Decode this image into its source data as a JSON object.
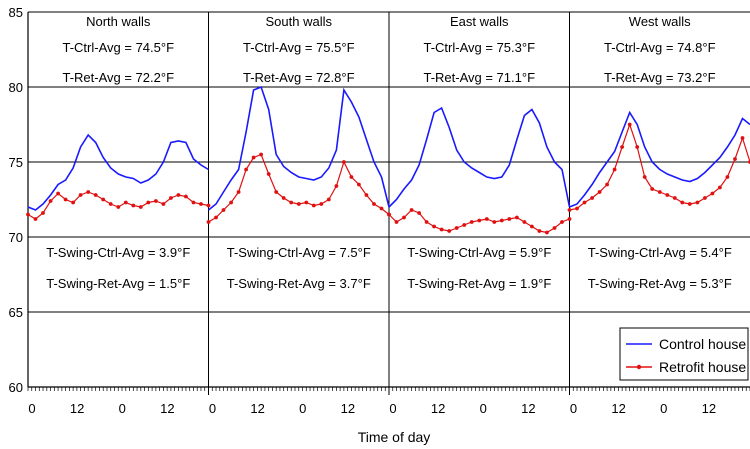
{
  "chart_data": {
    "type": "line",
    "xlabel": "Time of day",
    "ylabel": "",
    "ylim": [
      60,
      85
    ],
    "y_ticks": [
      "60",
      "65",
      "70",
      "75",
      "80",
      "85"
    ],
    "x_ticks_per_panel": [
      "0",
      "12",
      "0",
      "12"
    ],
    "x_hours_per_panel": [
      0,
      12,
      24,
      36
    ],
    "hours_per_panel": 48,
    "grid": true,
    "legend_position": "bottom-right",
    "legend": [
      "Control house",
      "Retrofit house"
    ],
    "colors": {
      "control": "#1a1aff",
      "retrofit": "#e01010"
    },
    "panels": [
      {
        "title": "North walls",
        "ctrl_avg": "T-Ctrl-Avg = 74.5°F",
        "ret_avg": "T-Ret-Avg = 72.2°F",
        "swing_ctrl": "T-Swing-Ctrl-Avg = 3.9°F",
        "swing_ret": "T-Swing-Ret-Avg = 1.5°F",
        "series": [
          {
            "name": "Control house",
            "x": [
              0,
              2,
              4,
              6,
              8,
              10,
              12,
              14,
              16,
              18,
              20,
              22,
              24,
              26,
              28,
              30,
              32,
              34,
              36,
              38,
              40,
              42,
              44,
              46,
              48
            ],
            "y": [
              72.0,
              71.8,
              72.2,
              72.8,
              73.5,
              73.8,
              74.6,
              76.0,
              76.8,
              76.3,
              75.3,
              74.6,
              74.2,
              74.0,
              73.9,
              73.6,
              73.8,
              74.2,
              75.0,
              76.3,
              76.4,
              76.3,
              75.2,
              74.8,
              74.5
            ]
          },
          {
            "name": "Retrofit house",
            "x": [
              0,
              2,
              4,
              6,
              8,
              10,
              12,
              14,
              16,
              18,
              20,
              22,
              24,
              26,
              28,
              30,
              32,
              34,
              36,
              38,
              40,
              42,
              44,
              46,
              48
            ],
            "y": [
              71.5,
              71.2,
              71.6,
              72.4,
              72.9,
              72.5,
              72.3,
              72.8,
              73.0,
              72.8,
              72.5,
              72.2,
              72.0,
              72.3,
              72.1,
              72.0,
              72.3,
              72.4,
              72.2,
              72.6,
              72.8,
              72.7,
              72.3,
              72.2,
              72.1
            ]
          }
        ]
      },
      {
        "title": "South walls",
        "ctrl_avg": "T-Ctrl-Avg = 75.5°F",
        "ret_avg": "T-Ret-Avg = 72.8°F",
        "swing_ctrl": "T-Swing-Ctrl-Avg = 7.5°F",
        "swing_ret": "T-Swing-Ret-Avg = 3.7°F",
        "series": [
          {
            "name": "Control house",
            "x": [
              0,
              2,
              4,
              6,
              8,
              10,
              12,
              14,
              16,
              18,
              20,
              22,
              24,
              26,
              28,
              30,
              32,
              34,
              36,
              38,
              40,
              42,
              44,
              46,
              48
            ],
            "y": [
              71.8,
              72.2,
              73.0,
              73.8,
              74.5,
              77.0,
              79.8,
              80.0,
              78.5,
              75.5,
              74.7,
              74.3,
              74.0,
              73.9,
              73.8,
              74.0,
              74.6,
              75.8,
              79.8,
              79.0,
              78.0,
              76.5,
              75.0,
              74.0,
              72.0
            ]
          },
          {
            "name": "Retrofit house",
            "x": [
              0,
              2,
              4,
              6,
              8,
              10,
              12,
              14,
              16,
              18,
              20,
              22,
              24,
              26,
              28,
              30,
              32,
              34,
              36,
              38,
              40,
              42,
              44,
              46,
              48
            ],
            "y": [
              71.0,
              71.3,
              71.8,
              72.3,
              73.0,
              74.5,
              75.3,
              75.5,
              74.2,
              73.0,
              72.6,
              72.3,
              72.2,
              72.3,
              72.1,
              72.2,
              72.5,
              73.4,
              75.0,
              74.0,
              73.5,
              72.8,
              72.2,
              71.9,
              71.5
            ]
          }
        ]
      },
      {
        "title": "East walls",
        "ctrl_avg": "T-Ctrl-Avg = 75.3°F",
        "ret_avg": "T-Ret-Avg = 71.1°F",
        "swing_ctrl": "T-Swing-Ctrl-Avg = 5.9°F",
        "swing_ret": "T-Swing-Ret-Avg = 1.9°F",
        "series": [
          {
            "name": "Control house",
            "x": [
              0,
              2,
              4,
              6,
              8,
              10,
              12,
              14,
              16,
              18,
              20,
              22,
              24,
              26,
              28,
              30,
              32,
              34,
              36,
              38,
              40,
              42,
              44,
              46,
              48
            ],
            "y": [
              72.0,
              72.5,
              73.2,
              73.8,
              74.8,
              76.5,
              78.3,
              78.6,
              77.3,
              75.8,
              75.0,
              74.6,
              74.3,
              74.0,
              73.9,
              74.0,
              74.8,
              76.5,
              78.1,
              78.5,
              77.6,
              76.0,
              75.0,
              74.5,
              72.0
            ]
          },
          {
            "name": "Retrofit house",
            "x": [
              0,
              2,
              4,
              6,
              8,
              10,
              12,
              14,
              16,
              18,
              20,
              22,
              24,
              26,
              28,
              30,
              32,
              34,
              36,
              38,
              40,
              42,
              44,
              46,
              48
            ],
            "y": [
              71.5,
              71.0,
              71.3,
              71.8,
              71.6,
              71.0,
              70.7,
              70.5,
              70.4,
              70.6,
              70.8,
              71.0,
              71.1,
              71.2,
              71.0,
              71.1,
              71.2,
              71.3,
              71.0,
              70.7,
              70.4,
              70.3,
              70.6,
              71.0,
              71.2
            ]
          }
        ]
      },
      {
        "title": "West walls",
        "ctrl_avg": "T-Ctrl-Avg = 74.8°F",
        "ret_avg": "T-Ret-Avg = 73.2°F",
        "swing_ctrl": "T-Swing-Ctrl-Avg = 5.4°F",
        "swing_ret": "T-Swing-Ret-Avg = 5.3°F",
        "series": [
          {
            "name": "Control house",
            "x": [
              0,
              2,
              4,
              6,
              8,
              10,
              12,
              14,
              16,
              18,
              20,
              22,
              24,
              26,
              28,
              30,
              32,
              34,
              36,
              38,
              40,
              42,
              44,
              46,
              48
            ],
            "y": [
              72.0,
              72.2,
              72.8,
              73.5,
              74.3,
              75.0,
              75.7,
              77.0,
              78.3,
              77.5,
              76.0,
              75.0,
              74.5,
              74.2,
              74.0,
              73.8,
              73.7,
              73.9,
              74.3,
              74.8,
              75.3,
              76.0,
              76.8,
              77.9,
              77.5
            ]
          },
          {
            "name": "Retrofit house",
            "x": [
              0,
              2,
              4,
              6,
              8,
              10,
              12,
              14,
              16,
              18,
              20,
              22,
              24,
              26,
              28,
              30,
              32,
              34,
              36,
              38,
              40,
              42,
              44,
              46,
              48
            ],
            "y": [
              71.8,
              71.9,
              72.3,
              72.6,
              73.0,
              73.5,
              74.5,
              76.0,
              77.5,
              76.0,
              74.0,
              73.2,
              73.0,
              72.8,
              72.6,
              72.3,
              72.2,
              72.3,
              72.6,
              72.9,
              73.3,
              74.0,
              75.2,
              76.6,
              75.0
            ]
          }
        ]
      }
    ]
  }
}
